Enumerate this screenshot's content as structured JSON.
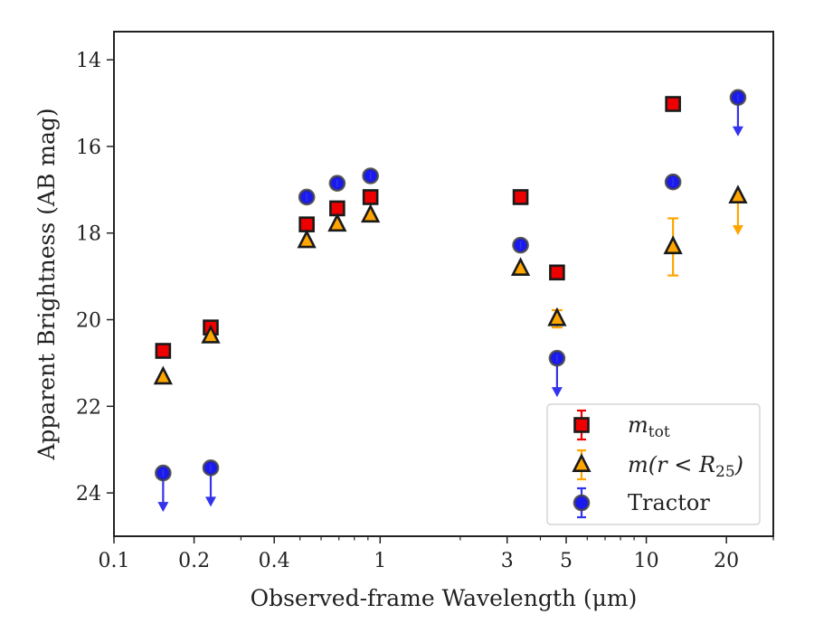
{
  "chart_data": {
    "type": "scatter",
    "xlabel": "Observed-frame Wavelength (μm)",
    "ylabel": "Apparent Brightness (AB mag)",
    "xscale": "log",
    "yaxis_inverted": true,
    "xlim": [
      0.1,
      30
    ],
    "ylim": [
      25.0,
      13.35
    ],
    "xticks": [
      {
        "value": 0.1,
        "label": "0.1"
      },
      {
        "value": 0.2,
        "label": "0.2"
      },
      {
        "value": 0.4,
        "label": "0.4"
      },
      {
        "value": 1,
        "label": "1"
      },
      {
        "value": 3,
        "label": "3"
      },
      {
        "value": 5,
        "label": "5"
      },
      {
        "value": 10,
        "label": "10"
      },
      {
        "value": 20,
        "label": "20"
      }
    ],
    "xminor": [
      0.3,
      0.5,
      0.6,
      0.7,
      0.8,
      0.9,
      2,
      4,
      6,
      7,
      8,
      9,
      30
    ],
    "yticks": [
      14,
      16,
      18,
      20,
      22,
      24
    ],
    "grid": false,
    "legend_position": "lower-right",
    "series": [
      {
        "name": "m_tot",
        "legend_main": "m",
        "legend_sub": "tot",
        "marker": "square",
        "color": "#ee0000",
        "error_color": "#ee0000",
        "points": [
          {
            "x": 0.153,
            "y": 20.72
          },
          {
            "x": 0.231,
            "y": 20.18
          },
          {
            "x": 0.53,
            "y": 17.8
          },
          {
            "x": 0.69,
            "y": 17.43
          },
          {
            "x": 0.92,
            "y": 17.17
          },
          {
            "x": 3.37,
            "y": 17.17
          },
          {
            "x": 4.62,
            "y": 18.91
          },
          {
            "x": 12.6,
            "y": 15.02
          }
        ]
      },
      {
        "name": "m(r < R25)",
        "legend_main": "m(r < R",
        "legend_sub": "25",
        "legend_end": ")",
        "marker": "triangle",
        "color": "#ffa500",
        "error_color": "#ffa500",
        "points": [
          {
            "x": 0.153,
            "y": 21.33
          },
          {
            "x": 0.231,
            "y": 20.38
          },
          {
            "x": 0.53,
            "y": 18.18
          },
          {
            "x": 0.69,
            "y": 17.8
          },
          {
            "x": 0.92,
            "y": 17.59
          },
          {
            "x": 3.37,
            "y": 18.82
          },
          {
            "x": 4.62,
            "y": 19.98,
            "err": 0.2
          },
          {
            "x": 12.6,
            "y": 18.32,
            "err": 0.66
          },
          {
            "x": 22.1,
            "y": 17.15,
            "upper_limit": true
          }
        ]
      },
      {
        "name": "Tractor",
        "legend_main": "Tractor",
        "marker": "circle",
        "color": "#1a1aee",
        "error_color": "#3333ee",
        "points": [
          {
            "x": 0.153,
            "y": 23.54,
            "upper_limit": true
          },
          {
            "x": 0.231,
            "y": 23.42,
            "upper_limit": true
          },
          {
            "x": 0.53,
            "y": 17.17
          },
          {
            "x": 0.69,
            "y": 16.85
          },
          {
            "x": 0.92,
            "y": 16.68
          },
          {
            "x": 3.37,
            "y": 18.28
          },
          {
            "x": 4.62,
            "y": 20.89,
            "upper_limit": true
          },
          {
            "x": 12.6,
            "y": 16.82
          },
          {
            "x": 22.1,
            "y": 14.87,
            "upper_limit": true
          }
        ]
      }
    ]
  }
}
